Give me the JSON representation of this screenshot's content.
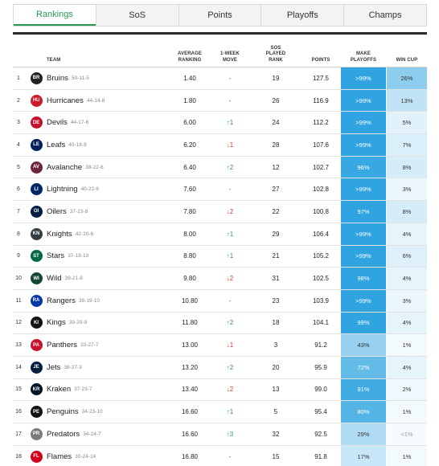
{
  "tabs": [
    {
      "label": "Rankings",
      "active": true
    },
    {
      "label": "SoS",
      "active": false
    },
    {
      "label": "Points",
      "active": false
    },
    {
      "label": "Playoffs",
      "active": false
    },
    {
      "label": "Champs",
      "active": false
    }
  ],
  "columns": {
    "team": "TEAM",
    "avg": "AVERAGE RANKING",
    "move": "1-WEEK MOVE",
    "sos": "SOS PLAYED RANK",
    "points": "POINTS",
    "make_playoffs": "MAKE PLAYOFFS",
    "win_cup": "WIN CUP"
  },
  "rows": [
    {
      "rank": "1",
      "team": "Bruins",
      "record": "50-11-5",
      "avg": "1.40",
      "move": "-",
      "move_dir": "none",
      "sos": "19",
      "points": "127.5",
      "playoffs": ">99%",
      "playoffs_pct": 100,
      "cup": "26%",
      "cup_pct": 26,
      "logo_color": "#222222",
      "logo_icon": "bruins-logo-icon"
    },
    {
      "rank": "2",
      "team": "Hurricanes",
      "record": "44-14-8",
      "avg": "1.80",
      "move": "-",
      "move_dir": "none",
      "sos": "26",
      "points": "116.9",
      "playoffs": ">99%",
      "playoffs_pct": 100,
      "cup": "13%",
      "cup_pct": 13,
      "logo_color": "#cc1a2a",
      "logo_icon": "hurricanes-logo-icon"
    },
    {
      "rank": "3",
      "team": "Devils",
      "record": "44-17-6",
      "avg": "6.00",
      "move": "↑1",
      "move_dir": "up",
      "sos": "24",
      "points": "112.2",
      "playoffs": ">99%",
      "playoffs_pct": 100,
      "cup": "5%",
      "cup_pct": 5,
      "logo_color": "#c8102e",
      "logo_icon": "devils-logo-icon"
    },
    {
      "rank": "4",
      "team": "Leafs",
      "record": "40-18-9",
      "avg": "6.20",
      "move": "↓1",
      "move_dir": "down",
      "sos": "28",
      "points": "107.6",
      "playoffs": ">99%",
      "playoffs_pct": 100,
      "cup": "7%",
      "cup_pct": 7,
      "logo_color": "#00205b",
      "logo_icon": "leafs-logo-icon"
    },
    {
      "rank": "5",
      "team": "Avalanche",
      "record": "38-22-6",
      "avg": "6.40",
      "move": "↑2",
      "move_dir": "up",
      "sos": "12",
      "points": "102.7",
      "playoffs": "96%",
      "playoffs_pct": 96,
      "cup": "8%",
      "cup_pct": 8,
      "logo_color": "#6f263d",
      "logo_icon": "avalanche-logo-icon"
    },
    {
      "rank": "6",
      "team": "Lightning",
      "record": "40-22-6",
      "avg": "7.60",
      "move": "-",
      "move_dir": "none",
      "sos": "27",
      "points": "102.8",
      "playoffs": ">99%",
      "playoffs_pct": 100,
      "cup": "3%",
      "cup_pct": 3,
      "logo_color": "#002868",
      "logo_icon": "lightning-logo-icon"
    },
    {
      "rank": "7",
      "team": "Oilers",
      "record": "37-23-8",
      "avg": "7.80",
      "move": "↓2",
      "move_dir": "down",
      "sos": "22",
      "points": "100.8",
      "playoffs": "97%",
      "playoffs_pct": 97,
      "cup": "8%",
      "cup_pct": 8,
      "logo_color": "#041e42",
      "logo_icon": "oilers-logo-icon"
    },
    {
      "rank": "8",
      "team": "Knights",
      "record": "42-20-6",
      "avg": "8.00",
      "move": "↑1",
      "move_dir": "up",
      "sos": "29",
      "points": "106.4",
      "playoffs": ">99%",
      "playoffs_pct": 100,
      "cup": "4%",
      "cup_pct": 4,
      "logo_color": "#333f42",
      "logo_icon": "knights-logo-icon"
    },
    {
      "rank": "9",
      "team": "Stars",
      "record": "37-18-13",
      "avg": "8.80",
      "move": "↑1",
      "move_dir": "up",
      "sos": "21",
      "points": "105.2",
      "playoffs": ">99%",
      "playoffs_pct": 100,
      "cup": "6%",
      "cup_pct": 6,
      "logo_color": "#006847",
      "logo_icon": "stars-logo-icon"
    },
    {
      "rank": "10",
      "team": "Wild",
      "record": "39-21-8",
      "avg": "9.80",
      "move": "↓2",
      "move_dir": "down",
      "sos": "31",
      "points": "102.5",
      "playoffs": "98%",
      "playoffs_pct": 98,
      "cup": "4%",
      "cup_pct": 4,
      "logo_color": "#154734",
      "logo_icon": "wild-logo-icon"
    },
    {
      "rank": "11",
      "team": "Rangers",
      "record": "38-19-10",
      "avg": "10.80",
      "move": "-",
      "move_dir": "none",
      "sos": "23",
      "points": "103.9",
      "playoffs": ">99%",
      "playoffs_pct": 100,
      "cup": "3%",
      "cup_pct": 3,
      "logo_color": "#0038a8",
      "logo_icon": "rangers-logo-icon"
    },
    {
      "rank": "12",
      "team": "Kings",
      "record": "39-20-9",
      "avg": "11.80",
      "move": "↑2",
      "move_dir": "up",
      "sos": "18",
      "points": "104.1",
      "playoffs": "99%",
      "playoffs_pct": 99,
      "cup": "4%",
      "cup_pct": 4,
      "logo_color": "#111111",
      "logo_icon": "kings-logo-icon"
    },
    {
      "rank": "13",
      "team": "Panthers",
      "record": "33-27-7",
      "avg": "13.00",
      "move": "↓1",
      "move_dir": "down",
      "sos": "3",
      "points": "91.2",
      "playoffs": "43%",
      "playoffs_pct": 43,
      "cup": "1%",
      "cup_pct": 1,
      "logo_color": "#c8102e",
      "logo_icon": "panthers-logo-icon"
    },
    {
      "rank": "14",
      "team": "Jets",
      "record": "38-27-3",
      "avg": "13.20",
      "move": "↑2",
      "move_dir": "up",
      "sos": "20",
      "points": "95.9",
      "playoffs": "72%",
      "playoffs_pct": 72,
      "cup": "4%",
      "cup_pct": 4,
      "logo_color": "#041e42",
      "logo_icon": "jets-logo-icon"
    },
    {
      "rank": "15",
      "team": "Kraken",
      "record": "37-23-7",
      "avg": "13.40",
      "move": "↓2",
      "move_dir": "down",
      "sos": "13",
      "points": "99.0",
      "playoffs": "91%",
      "playoffs_pct": 91,
      "cup": "2%",
      "cup_pct": 2,
      "logo_color": "#001628",
      "logo_icon": "kraken-logo-icon"
    },
    {
      "rank": "16",
      "team": "Penguins",
      "record": "34-23-10",
      "avg": "16.60",
      "move": "↑1",
      "move_dir": "up",
      "sos": "5",
      "points": "95.4",
      "playoffs": "80%",
      "playoffs_pct": 80,
      "cup": "1%",
      "cup_pct": 1,
      "logo_color": "#111111",
      "logo_icon": "penguins-logo-icon"
    },
    {
      "rank": "17",
      "team": "Predators",
      "record": "34-24-7",
      "avg": "16.60",
      "move": "↑3",
      "move_dir": "up",
      "sos": "32",
      "points": "92.5",
      "playoffs": "29%",
      "playoffs_pct": 29,
      "cup": "<1%",
      "cup_pct": 0,
      "logo_color": "#7a7a7a",
      "logo_icon": "predators-logo-icon"
    },
    {
      "rank": "18",
      "team": "Flames",
      "record": "30-24-14",
      "avg": "16.80",
      "move": "-",
      "move_dir": "none",
      "sos": "15",
      "points": "91.8",
      "playoffs": "17%",
      "playoffs_pct": 17,
      "cup": "1%",
      "cup_pct": 1,
      "logo_color": "#d2001c",
      "logo_icon": "flames-logo-icon"
    }
  ]
}
